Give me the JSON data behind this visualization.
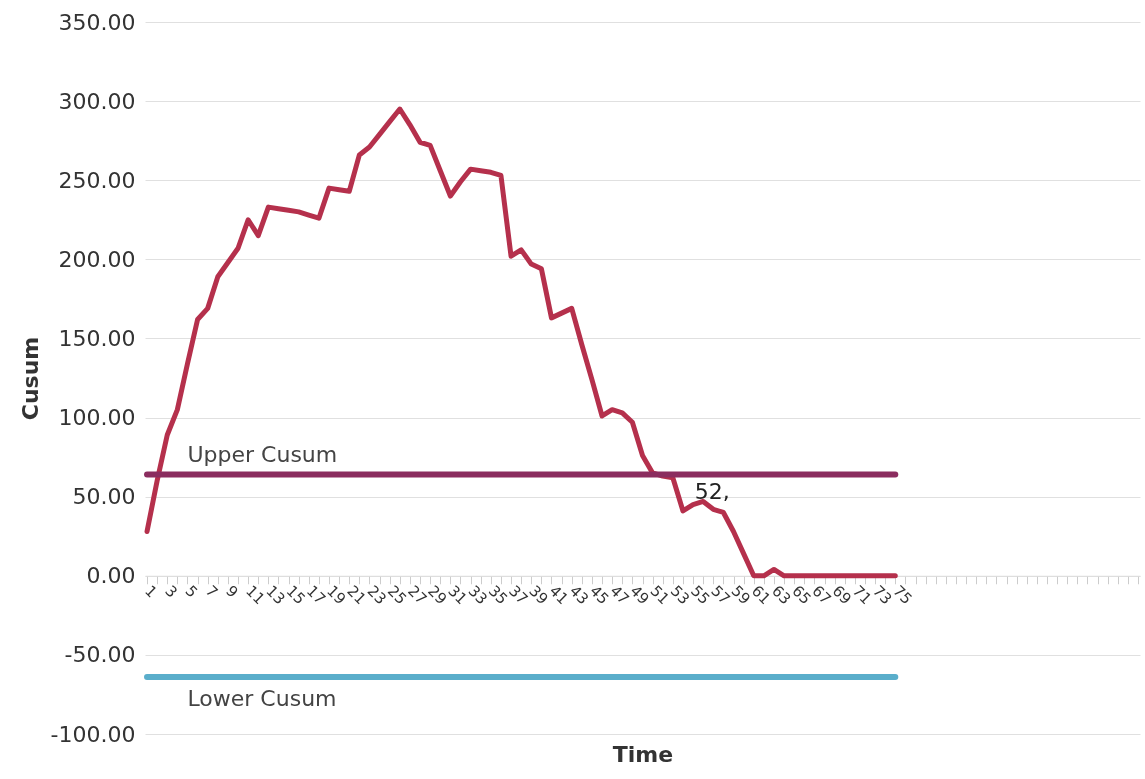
{
  "chart_data": {
    "type": "line",
    "xlabel": "Time",
    "ylabel": "Cusum",
    "categories": [
      "1",
      null,
      "3",
      null,
      "5",
      null,
      "7",
      null,
      "9",
      null,
      "11",
      null,
      "13",
      null,
      "15",
      null,
      "17",
      null,
      "19",
      null,
      "21",
      null,
      "23",
      null,
      "25",
      null,
      "27",
      null,
      "29",
      null,
      "31",
      null,
      "33",
      null,
      "35",
      null,
      "37",
      null,
      "39",
      null,
      "41",
      null,
      "43",
      null,
      "45",
      null,
      "47",
      null,
      "49",
      null,
      "51",
      null,
      "53",
      null,
      "55",
      null,
      "57",
      null,
      "59",
      null,
      "61",
      null,
      "63",
      null,
      "65",
      null,
      "67",
      null,
      "69",
      null,
      "71",
      null,
      "73",
      null,
      "75",
      null,
      null,
      null,
      null,
      null,
      null,
      null,
      null,
      null,
      null,
      null,
      null,
      null,
      null,
      null,
      null,
      null,
      null,
      null,
      null,
      null,
      null,
      null,
      null
    ],
    "series": [
      {
        "color": "#b5304c",
        "values": [
          28,
          60,
          89,
          105,
          134,
          162,
          169,
          189,
          198,
          207,
          225,
          215,
          233,
          232,
          231,
          230,
          228,
          226,
          245,
          244,
          243,
          266,
          271,
          279,
          287,
          295,
          285,
          274,
          272,
          256,
          240,
          249,
          257,
          256,
          255,
          253,
          202,
          206,
          197,
          194,
          163,
          166,
          169,
          146,
          124,
          101,
          105,
          103,
          97,
          76,
          65,
          63,
          62,
          41,
          45,
          47,
          42,
          40,
          28,
          14,
          0,
          0,
          4,
          0,
          0,
          0,
          0,
          0,
          0,
          0,
          0,
          0,
          0,
          0,
          0,
          null,
          null,
          null,
          null,
          null,
          null,
          null,
          null,
          null,
          null,
          null,
          null,
          null,
          null,
          null,
          null,
          null,
          null,
          null,
          null,
          null,
          null,
          null,
          null
        ]
      },
      {
        "name": "Upper Cusum",
        "color": "#8b2d5f",
        "values": [
          64,
          64,
          64,
          64,
          64,
          64,
          64,
          64,
          64,
          64,
          64,
          64,
          64,
          64,
          64,
          64,
          64,
          64,
          64,
          64,
          64,
          64,
          64,
          64,
          64,
          64,
          64,
          64,
          64,
          64,
          64,
          64,
          64,
          64,
          64,
          64,
          64,
          64,
          64,
          64,
          64,
          64,
          64,
          64,
          64,
          64,
          64,
          64,
          64,
          64,
          64,
          64,
          64,
          64,
          64,
          64,
          64,
          64,
          64,
          64,
          64,
          64,
          64,
          64,
          64,
          64,
          64,
          64,
          64,
          64,
          64,
          64,
          64,
          64,
          64,
          null,
          null,
          null,
          null,
          null,
          null,
          null,
          null,
          null,
          null,
          null,
          null,
          null,
          null,
          null,
          null,
          null,
          null,
          null,
          null,
          null,
          null,
          null,
          null
        ]
      },
      {
        "name": "Lower Cusum",
        "color": "#5aaecb",
        "values": [
          -64,
          -64,
          -64,
          -64,
          -64,
          -64,
          -64,
          -64,
          -64,
          -64,
          -64,
          -64,
          -64,
          -64,
          -64,
          -64,
          -64,
          -64,
          -64,
          -64,
          -64,
          -64,
          -64,
          -64,
          -64,
          -64,
          -64,
          -64,
          -64,
          -64,
          -64,
          -64,
          -64,
          -64,
          -64,
          -64,
          -64,
          -64,
          -64,
          -64,
          -64,
          -64,
          -64,
          -64,
          -64,
          -64,
          -64,
          -64,
          -64,
          -64,
          -64,
          -64,
          -64,
          -64,
          -64,
          -64,
          -64,
          -64,
          -64,
          -64,
          -64,
          -64,
          -64,
          -64,
          -64,
          -64,
          -64,
          -64,
          -64,
          -64,
          -64,
          -64,
          -64,
          -64,
          -64,
          null,
          null,
          null,
          null,
          null,
          null,
          null,
          null,
          null,
          null,
          null,
          null,
          null,
          null,
          null,
          null,
          null,
          null,
          null,
          null,
          null,
          null,
          null,
          null
        ]
      }
    ],
    "ylim": [
      -100,
      350
    ],
    "yticks": [
      {
        "value": -100,
        "label": "-100.00"
      },
      {
        "value": -50,
        "label": "-50.00"
      },
      {
        "value": 0,
        "label": "0.00"
      },
      {
        "value": 50,
        "label": "50.00"
      },
      {
        "value": 100,
        "label": "100.00"
      },
      {
        "value": 150,
        "label": "150.00"
      },
      {
        "value": 200,
        "label": "200.00"
      },
      {
        "value": 250,
        "label": "250.00"
      },
      {
        "value": 300,
        "label": "300.00"
      },
      {
        "value": 350,
        "label": "350.00"
      }
    ],
    "grid": "y",
    "annotations": [
      {
        "text": "52,",
        "x": "53",
        "y": 62
      }
    ]
  }
}
